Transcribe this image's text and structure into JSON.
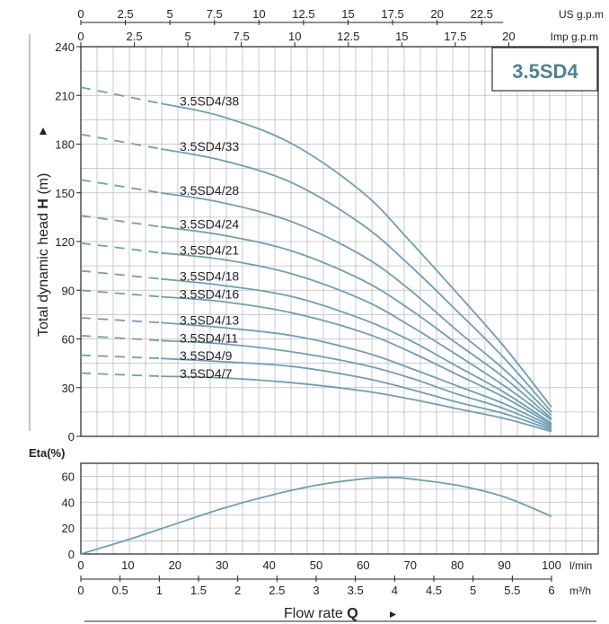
{
  "model_label": "3.5SD4",
  "axes": {
    "us_gpm_unit": "US g.p.m",
    "us_gpm_ticks": [
      "0",
      "2.5",
      "5",
      "7.5",
      "10",
      "12.5",
      "15",
      "17.5",
      "20",
      "22.5"
    ],
    "imp_gpm_unit": "Imp g.p.m",
    "imp_gpm_ticks": [
      "0",
      "2.5",
      "5",
      "7.5",
      "10",
      "12.5",
      "15",
      "17.5",
      "20"
    ],
    "head_ylabel_prefix": "Total dynamic head ",
    "head_ylabel_bold": "H",
    "head_ylabel_suffix": " (m)",
    "head_ticks": [
      "0",
      "30",
      "60",
      "90",
      "120",
      "150",
      "180",
      "210",
      "240"
    ],
    "eta_label": "Eta(%)",
    "eta_ticks": [
      "0",
      "20",
      "40",
      "60"
    ],
    "lmin_unit": "l/min",
    "lmin_ticks": [
      "0",
      "10",
      "20",
      "30",
      "40",
      "50",
      "60",
      "70",
      "80",
      "90",
      "100"
    ],
    "m3h_unit": "m³/h",
    "m3h_ticks": [
      "0",
      "0.5",
      "1",
      "1.5",
      "2",
      "2.5",
      "3",
      "3.5",
      "4",
      "4.5",
      "5",
      "5.5",
      "6"
    ],
    "xlabel_text": "Flow rate ",
    "xlabel_bold": "Q"
  },
  "chart_data": [
    {
      "type": "line",
      "x_unit": "l/min",
      "xlim": [
        0,
        100
      ],
      "ylim": [
        0,
        240
      ],
      "ylabel": "Total dynamic head H (m)",
      "dashed_until_x": 17,
      "series": [
        {
          "name": "3.5SD4/38",
          "x": [
            0,
            17,
            30,
            45,
            60,
            70,
            80,
            90,
            100
          ],
          "y": [
            215,
            205,
            197,
            180,
            150,
            120,
            88,
            55,
            18
          ]
        },
        {
          "name": "3.5SD4/33",
          "x": [
            0,
            17,
            30,
            45,
            60,
            70,
            80,
            90,
            100
          ],
          "y": [
            186,
            177,
            170,
            156,
            130,
            105,
            77,
            48,
            15
          ]
        },
        {
          "name": "3.5SD4/28",
          "x": [
            0,
            17,
            30,
            45,
            60,
            70,
            80,
            90,
            100
          ],
          "y": [
            158,
            150,
            144,
            132,
            111,
            90,
            65,
            41,
            13
          ]
        },
        {
          "name": "3.5SD4/24",
          "x": [
            0,
            17,
            30,
            45,
            60,
            70,
            80,
            90,
            100
          ],
          "y": [
            136,
            129,
            124,
            114,
            96,
            78,
            57,
            36,
            11
          ]
        },
        {
          "name": "3.5SD4/21",
          "x": [
            0,
            17,
            30,
            45,
            60,
            70,
            80,
            90,
            100
          ],
          "y": [
            119,
            113,
            109,
            100,
            84,
            68,
            50,
            31,
            10
          ]
        },
        {
          "name": "3.5SD4/18",
          "x": [
            0,
            17,
            30,
            45,
            60,
            70,
            80,
            90,
            100
          ],
          "y": [
            102,
            97,
            93,
            86,
            72,
            59,
            43,
            27,
            8
          ]
        },
        {
          "name": "3.5SD4/16",
          "x": [
            0,
            17,
            30,
            45,
            60,
            70,
            80,
            90,
            100
          ],
          "y": [
            90,
            86,
            83,
            76,
            64,
            52,
            38,
            24,
            7
          ]
        },
        {
          "name": "3.5SD4/13",
          "x": [
            0,
            17,
            30,
            45,
            60,
            70,
            80,
            90,
            100
          ],
          "y": [
            73,
            70,
            67,
            62,
            52,
            42,
            31,
            20,
            6
          ]
        },
        {
          "name": "3.5SD4/11",
          "x": [
            0,
            17,
            30,
            45,
            60,
            70,
            80,
            90,
            100
          ],
          "y": [
            62,
            59,
            57,
            52,
            44,
            36,
            26,
            17,
            5
          ]
        },
        {
          "name": "3.5SD4/9",
          "x": [
            0,
            17,
            30,
            45,
            60,
            70,
            80,
            90,
            100
          ],
          "y": [
            50,
            48,
            46,
            43,
            36,
            29,
            21,
            14,
            4
          ]
        },
        {
          "name": "3.5SD4/7",
          "x": [
            0,
            17,
            30,
            45,
            60,
            70,
            80,
            90,
            100
          ],
          "y": [
            39,
            37,
            36,
            33,
            28,
            23,
            17,
            11,
            3
          ]
        }
      ]
    },
    {
      "type": "line",
      "x_unit": "l/min",
      "xlim": [
        0,
        100
      ],
      "ylim": [
        0,
        70
      ],
      "ylabel": "Eta(%)",
      "series": [
        {
          "x": [
            0,
            10,
            20,
            30,
            40,
            50,
            60,
            66,
            70,
            80,
            90,
            100
          ],
          "y": [
            0,
            11,
            23,
            35,
            45,
            53,
            58,
            59,
            58,
            53,
            44,
            29
          ]
        }
      ]
    }
  ]
}
